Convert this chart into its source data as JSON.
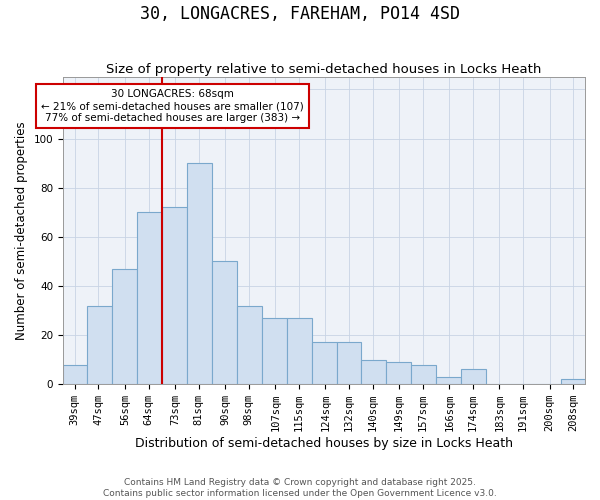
{
  "title": "30, LONGACRES, FAREHAM, PO14 4SD",
  "subtitle": "Size of property relative to semi-detached houses in Locks Heath",
  "xlabel": "Distribution of semi-detached houses by size in Locks Heath",
  "ylabel": "Number of semi-detached properties",
  "categories": [
    "39sqm",
    "47sqm",
    "56sqm",
    "64sqm",
    "73sqm",
    "81sqm",
    "90sqm",
    "98sqm",
    "107sqm",
    "115sqm",
    "124sqm",
    "132sqm",
    "140sqm",
    "149sqm",
    "157sqm",
    "166sqm",
    "174sqm",
    "183sqm",
    "191sqm",
    "200sqm",
    "208sqm"
  ],
  "values": [
    8,
    32,
    47,
    70,
    72,
    90,
    50,
    32,
    27,
    27,
    17,
    17,
    10,
    9,
    8,
    3,
    6,
    0,
    0,
    0,
    2
  ],
  "bar_color": "#d0dff0",
  "bar_edge_color": "#7aa8cc",
  "vline_color": "#cc0000",
  "grid_color": "#c8d4e4",
  "background_color": "#eef2f8",
  "ylim": [
    0,
    125
  ],
  "yticks": [
    0,
    20,
    40,
    60,
    80,
    100,
    120
  ],
  "annotation_text": "30 LONGACRES: 68sqm\n← 21% of semi-detached houses are smaller (107)\n77% of semi-detached houses are larger (383) →",
  "annotation_box_facecolor": "#ffffff",
  "annotation_box_edgecolor": "#cc0000",
  "footer_text": "Contains HM Land Registry data © Crown copyright and database right 2025.\nContains public sector information licensed under the Open Government Licence v3.0.",
  "title_fontsize": 12,
  "subtitle_fontsize": 9.5,
  "xlabel_fontsize": 9,
  "ylabel_fontsize": 8.5,
  "tick_fontsize": 7.5,
  "ann_fontsize": 7.5,
  "footer_fontsize": 6.5
}
